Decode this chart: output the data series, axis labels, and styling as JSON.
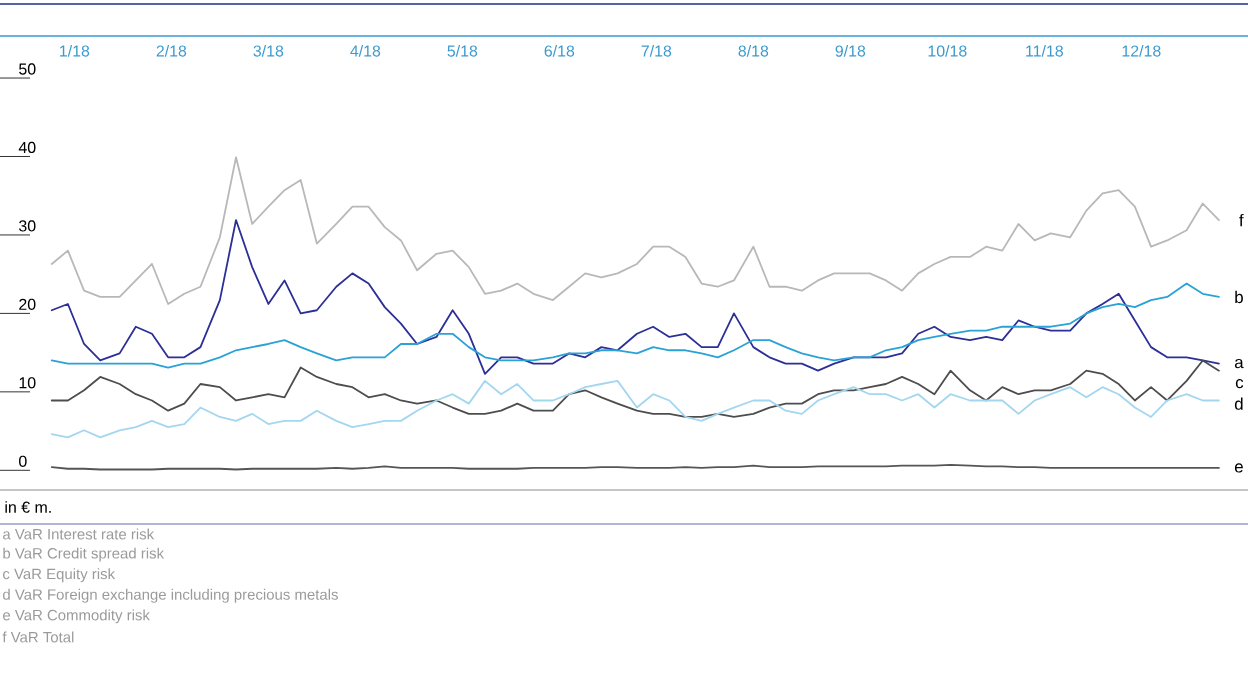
{
  "chart_data": {
    "type": "line",
    "marker": "none",
    "x": [
      "2018-01-02",
      "2018-01-07",
      "2018-01-12",
      "2018-01-17",
      "2018-01-23",
      "2018-01-28",
      "2018-02-02",
      "2018-02-07",
      "2018-02-12",
      "2018-02-17",
      "2018-02-23",
      "2018-02-28",
      "2018-03-05",
      "2018-03-10",
      "2018-03-15",
      "2018-03-20",
      "2018-03-25",
      "2018-03-31",
      "2018-04-05",
      "2018-04-10",
      "2018-04-15",
      "2018-04-20",
      "2018-04-25",
      "2018-05-01",
      "2018-05-06",
      "2018-05-11",
      "2018-05-16",
      "2018-05-21",
      "2018-05-26",
      "2018-05-31",
      "2018-06-06",
      "2018-06-11",
      "2018-06-16",
      "2018-06-21",
      "2018-06-26",
      "2018-07-02",
      "2018-07-07",
      "2018-07-12",
      "2018-07-17",
      "2018-07-22",
      "2018-07-27",
      "2018-08-01",
      "2018-08-07",
      "2018-08-12",
      "2018-08-17",
      "2018-08-22",
      "2018-08-27",
      "2018-09-01",
      "2018-09-07",
      "2018-09-12",
      "2018-09-17",
      "2018-09-22",
      "2018-09-27",
      "2018-10-02",
      "2018-10-07",
      "2018-10-13",
      "2018-10-18",
      "2018-10-23",
      "2018-10-28",
      "2018-11-02",
      "2018-11-07",
      "2018-11-13",
      "2018-11-18",
      "2018-11-23",
      "2018-11-28",
      "2018-12-03",
      "2018-12-08",
      "2018-12-13",
      "2018-12-19",
      "2018-12-24",
      "2018-12-29"
    ],
    "series": [
      {
        "name": "a",
        "color": "#2b2f96",
        "values": [
          20.4,
          21.2,
          16.1,
          14.0,
          14.9,
          18.3,
          17.4,
          14.4,
          14.4,
          15.7,
          21.7,
          31.9,
          25.9,
          21.2,
          24.2,
          20.0,
          20.4,
          23.4,
          25.1,
          23.8,
          20.8,
          18.7,
          16.1,
          17.0,
          20.4,
          17.4,
          12.3,
          14.4,
          14.4,
          13.6,
          13.6,
          14.9,
          14.4,
          15.7,
          15.3,
          17.4,
          18.3,
          17.0,
          17.4,
          15.7,
          15.7,
          20.0,
          15.7,
          14.4,
          13.6,
          13.6,
          12.7,
          13.6,
          14.4,
          14.4,
          14.4,
          14.9,
          17.4,
          18.3,
          17.0,
          16.6,
          17.0,
          16.6,
          19.1,
          18.3,
          17.8,
          17.8,
          20.0,
          21.2,
          22.5,
          19.1,
          15.7,
          14.4,
          14.4,
          14.0,
          13.6
        ]
      },
      {
        "name": "b",
        "color": "#2aa2d6",
        "values": [
          14.0,
          13.6,
          13.6,
          13.6,
          13.6,
          13.6,
          13.6,
          13.1,
          13.6,
          13.6,
          14.4,
          15.3,
          15.7,
          16.1,
          16.6,
          15.7,
          14.9,
          14.0,
          14.4,
          14.4,
          14.4,
          16.1,
          16.1,
          17.4,
          17.4,
          15.7,
          14.4,
          14.0,
          14.0,
          14.0,
          14.4,
          14.9,
          14.9,
          15.3,
          15.3,
          14.9,
          15.7,
          15.3,
          15.3,
          14.9,
          14.4,
          15.3,
          16.6,
          16.6,
          15.7,
          14.9,
          14.4,
          14.0,
          14.4,
          14.4,
          15.3,
          15.7,
          16.6,
          17.0,
          17.4,
          17.8,
          17.8,
          18.3,
          18.3,
          18.3,
          18.3,
          18.7,
          20.0,
          20.8,
          21.2,
          20.8,
          21.7,
          22.1,
          23.8,
          22.5,
          22.1
        ]
      },
      {
        "name": "c",
        "color": "#4d4d4d",
        "values": [
          8.9,
          8.9,
          10.2,
          11.9,
          11.0,
          9.7,
          8.9,
          7.6,
          8.5,
          11.0,
          10.6,
          8.9,
          9.3,
          9.7,
          9.3,
          13.1,
          11.9,
          11.0,
          10.6,
          9.3,
          9.7,
          8.9,
          8.5,
          8.9,
          8.0,
          7.2,
          7.2,
          7.6,
          8.5,
          7.6,
          7.6,
          9.7,
          10.2,
          9.3,
          8.5,
          7.6,
          7.2,
          7.2,
          6.8,
          6.8,
          7.2,
          6.8,
          7.2,
          8.0,
          8.5,
          8.5,
          9.7,
          10.2,
          10.2,
          10.6,
          11.0,
          11.9,
          11.0,
          9.7,
          12.7,
          10.2,
          8.9,
          10.6,
          9.7,
          10.2,
          10.2,
          11.0,
          12.7,
          12.3,
          11.0,
          8.9,
          10.6,
          8.9,
          11.4,
          14.0,
          12.7
        ]
      },
      {
        "name": "d",
        "color": "#a3d6ef",
        "values": [
          4.6,
          4.2,
          5.1,
          4.2,
          5.1,
          5.5,
          6.3,
          5.5,
          5.9,
          8.0,
          6.8,
          6.3,
          7.2,
          5.9,
          6.3,
          6.3,
          7.6,
          6.3,
          5.5,
          5.9,
          6.3,
          6.3,
          7.6,
          8.9,
          9.7,
          8.5,
          11.4,
          9.7,
          11.0,
          8.9,
          8.9,
          9.7,
          10.6,
          11.0,
          11.4,
          8.0,
          9.7,
          8.9,
          6.8,
          6.3,
          7.2,
          8.0,
          8.9,
          8.9,
          7.6,
          7.2,
          8.9,
          9.7,
          10.6,
          9.7,
          9.7,
          8.9,
          9.7,
          8.0,
          9.7,
          8.9,
          8.9,
          8.9,
          7.2,
          8.9,
          9.7,
          10.6,
          9.3,
          10.6,
          9.7,
          8.0,
          6.8,
          8.9,
          9.7,
          8.9,
          8.9
        ]
      },
      {
        "name": "e",
        "color": "#555555",
        "values": [
          0.4,
          0.2,
          0.2,
          0.1,
          0.1,
          0.1,
          0.1,
          0.2,
          0.2,
          0.2,
          0.2,
          0.1,
          0.2,
          0.2,
          0.2,
          0.2,
          0.2,
          0.3,
          0.2,
          0.3,
          0.5,
          0.3,
          0.3,
          0.3,
          0.3,
          0.2,
          0.2,
          0.2,
          0.2,
          0.3,
          0.3,
          0.3,
          0.3,
          0.4,
          0.4,
          0.3,
          0.3,
          0.3,
          0.4,
          0.3,
          0.4,
          0.4,
          0.6,
          0.4,
          0.4,
          0.4,
          0.5,
          0.5,
          0.5,
          0.5,
          0.5,
          0.6,
          0.6,
          0.6,
          0.7,
          0.6,
          0.5,
          0.5,
          0.4,
          0.4,
          0.3,
          0.3,
          0.3,
          0.3,
          0.3,
          0.3,
          0.3,
          0.3,
          0.3,
          0.3,
          0.3
        ]
      },
      {
        "name": "f",
        "color": "#b8b8b8",
        "values": [
          26.3,
          28.0,
          22.9,
          22.1,
          22.1,
          24.2,
          26.3,
          21.2,
          22.5,
          23.4,
          29.7,
          39.9,
          31.4,
          33.6,
          35.7,
          37.0,
          28.9,
          31.4,
          33.6,
          33.6,
          31.0,
          29.3,
          25.5,
          27.6,
          28.0,
          25.9,
          22.5,
          22.9,
          23.8,
          22.5,
          21.7,
          23.4,
          25.1,
          24.6,
          25.1,
          26.3,
          28.5,
          28.5,
          27.2,
          23.8,
          23.4,
          24.2,
          28.5,
          23.4,
          23.4,
          22.9,
          24.2,
          25.1,
          25.1,
          25.1,
          24.2,
          22.9,
          25.1,
          26.3,
          27.2,
          27.2,
          28.5,
          28.0,
          31.4,
          29.3,
          30.2,
          29.7,
          33.1,
          35.3,
          35.7,
          33.6,
          28.5,
          29.3,
          30.6,
          34.0,
          31.9
        ]
      }
    ],
    "xlim": [
      "2017-12-17",
      "2019-01-07"
    ],
    "xticks": [
      {
        "value": "2018-01-09",
        "label": "1/18"
      },
      {
        "value": "2018-02-08",
        "label": "2/18"
      },
      {
        "value": "2018-03-10",
        "label": "3/18"
      },
      {
        "value": "2018-04-09",
        "label": "4/18"
      },
      {
        "value": "2018-05-09",
        "label": "5/18"
      },
      {
        "value": "2018-06-08",
        "label": "6/18"
      },
      {
        "value": "2018-07-08",
        "label": "7/18"
      },
      {
        "value": "2018-08-07",
        "label": "8/18"
      },
      {
        "value": "2018-09-06",
        "label": "9/18"
      },
      {
        "value": "2018-10-06",
        "label": "10/18"
      },
      {
        "value": "2018-11-05",
        "label": "11/18"
      },
      {
        "value": "2018-12-05",
        "label": "12/18"
      }
    ],
    "ylim": [
      -2,
      55
    ],
    "yticks": [
      0,
      10,
      20,
      30,
      40,
      50
    ],
    "annotations": [
      "in € m.",
      "a VaR Interest rate risk",
      "b VaR Credit spread risk",
      "c VaR Equity risk",
      "d VaR Foreign exchange including precious metals",
      "e VaR Commodity risk",
      "f VaR Total"
    ]
  }
}
